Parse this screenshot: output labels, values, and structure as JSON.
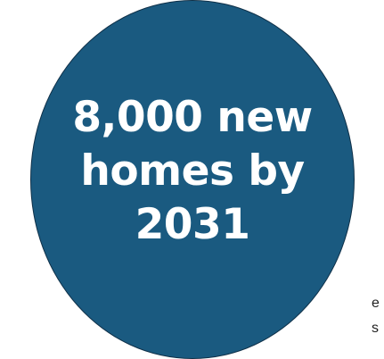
{
  "callout": {
    "line1": "8,000 new",
    "line2": "homes by",
    "line3": "2031"
  },
  "partial_text": {
    "line1": "e",
    "line2": "s"
  },
  "colors": {
    "circle_fill": "#1a5a80",
    "circle_border": "#0f3048",
    "headline_text": "#ffffff",
    "fragment_text": "#222222"
  }
}
